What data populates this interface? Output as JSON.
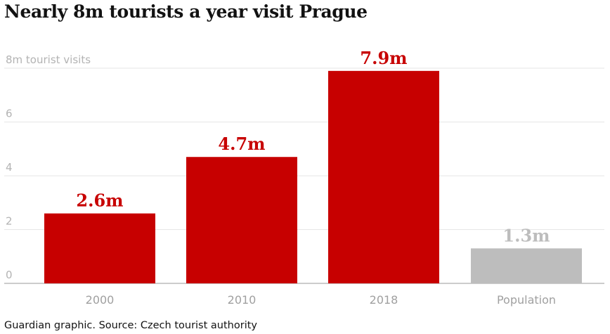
{
  "title": "Nearly 8m tourists a year visit Prague",
  "source": "Guardian graphic. Source: Czech tourist authority",
  "colors": {
    "highlight": "#c70000",
    "muted": "#bdbdbd",
    "gridline": "#e6e6e6",
    "axis": "#999999"
  },
  "chart_data": {
    "type": "bar",
    "title": "Nearly 8m tourists a year visit Prague",
    "xlabel": "",
    "ylabel": "8m tourist visits",
    "ylim": [
      0,
      8
    ],
    "grid": true,
    "y_ticks": [
      {
        "value": 8,
        "label": "8m tourist visits"
      },
      {
        "value": 6,
        "label": "6"
      },
      {
        "value": 4,
        "label": "4"
      },
      {
        "value": 2,
        "label": "2"
      },
      {
        "value": 0,
        "label": "0"
      }
    ],
    "categories": [
      "2000",
      "2010",
      "2018",
      "Population"
    ],
    "values": [
      2.6,
      4.7,
      7.9,
      1.3
    ],
    "data_labels": [
      "2.6m",
      "4.7m",
      "7.9m",
      "1.3m"
    ],
    "bar_colors": [
      "#c70000",
      "#c70000",
      "#c70000",
      "#bdbdbd"
    ],
    "label_colors": [
      "#c70000",
      "#c70000",
      "#c70000",
      "#bdbdbd"
    ]
  }
}
